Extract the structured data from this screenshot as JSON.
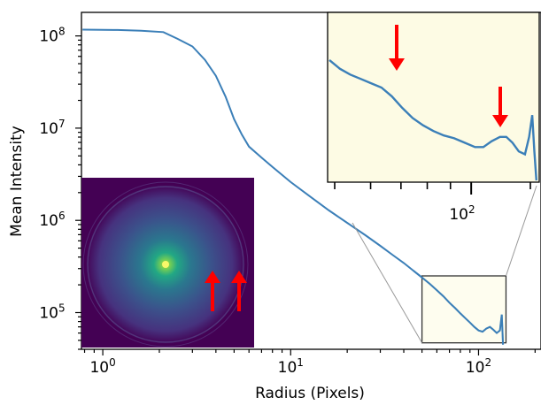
{
  "chart_data": {
    "type": "line",
    "title": "",
    "xlabel": "Radius (Pixels)",
    "ylabel": "Mean Intensity",
    "xscale": "log",
    "yscale": "log",
    "xlim": [
      0.77,
      215
    ],
    "ylim": [
      40000,
      180000000
    ],
    "x_ticks": [
      {
        "value": 1,
        "base": "10",
        "exp": "0"
      },
      {
        "value": 10,
        "base": "10",
        "exp": "1"
      },
      {
        "value": 100,
        "base": "10",
        "exp": "2"
      }
    ],
    "y_ticks": [
      {
        "value": 100000,
        "base": "10",
        "exp": "5"
      },
      {
        "value": 1000000,
        "base": "10",
        "exp": "6"
      },
      {
        "value": 10000000,
        "base": "10",
        "exp": "7"
      },
      {
        "value": 100000000,
        "base": "10",
        "exp": "8"
      }
    ],
    "grid": false,
    "line_color": "#3b7fb8",
    "series": [
      {
        "x": [
          0.78,
          1.2,
          1.6,
          2.1,
          2.5,
          3.0,
          3.5,
          4.0,
          4.5,
          5.0,
          5.5,
          6.0,
          7.0,
          8.0,
          10,
          13,
          16,
          20,
          25,
          30,
          35,
          40,
          45,
          50,
          55,
          60,
          65,
          70,
          75,
          80,
          85,
          90,
          95,
          100,
          105,
          110,
          115,
          120,
          125,
          130,
          133,
          135
        ],
        "y": [
          117000000,
          116000000,
          114000000,
          110000000,
          93000000,
          77000000,
          55000000,
          37000000,
          22000000,
          12500000,
          8500000,
          6300000,
          4800000,
          3800000,
          2600000,
          1750000,
          1280000,
          940000,
          690000,
          530000,
          420000,
          345000,
          285000,
          240000,
          205000,
          175000,
          150000,
          128000,
          112000,
          98000,
          87000,
          78000,
          70000,
          64000,
          62000,
          67000,
          70000,
          65000,
          60000,
          64000,
          95000,
          45000
        ]
      }
    ],
    "zoom_box": {
      "xlim": [
        50,
        140
      ],
      "ylim": [
        47000,
        250000
      ]
    },
    "inset_zoom": {
      "background": "#fdfbe4",
      "x_tick_value": 100,
      "x_tick_base": "10",
      "x_tick_exp": "2",
      "arrows": [
        {
          "at_x": 75
        },
        {
          "at_x": 125
        }
      ],
      "profile": [
        [
          0.0,
          0.17
        ],
        [
          0.05,
          0.23
        ],
        [
          0.1,
          0.27
        ],
        [
          0.15,
          0.3
        ],
        [
          0.2,
          0.33
        ],
        [
          0.25,
          0.36
        ],
        [
          0.3,
          0.42
        ],
        [
          0.35,
          0.5
        ],
        [
          0.4,
          0.57
        ],
        [
          0.45,
          0.62
        ],
        [
          0.5,
          0.66
        ],
        [
          0.55,
          0.69
        ],
        [
          0.6,
          0.71
        ],
        [
          0.65,
          0.74
        ],
        [
          0.7,
          0.77
        ],
        [
          0.74,
          0.77
        ],
        [
          0.78,
          0.73
        ],
        [
          0.82,
          0.7
        ],
        [
          0.85,
          0.7
        ],
        [
          0.88,
          0.74
        ],
        [
          0.91,
          0.8
        ],
        [
          0.94,
          0.82
        ],
        [
          0.96,
          0.7
        ],
        [
          0.975,
          0.55
        ],
        [
          0.985,
          0.8
        ],
        [
          0.995,
          1.0
        ]
      ]
    },
    "inset_image": {
      "description_color_map": "viridis",
      "arrow_color": "#ff0000",
      "arrows": 2
    },
    "arrow_color": "#ff0000"
  }
}
